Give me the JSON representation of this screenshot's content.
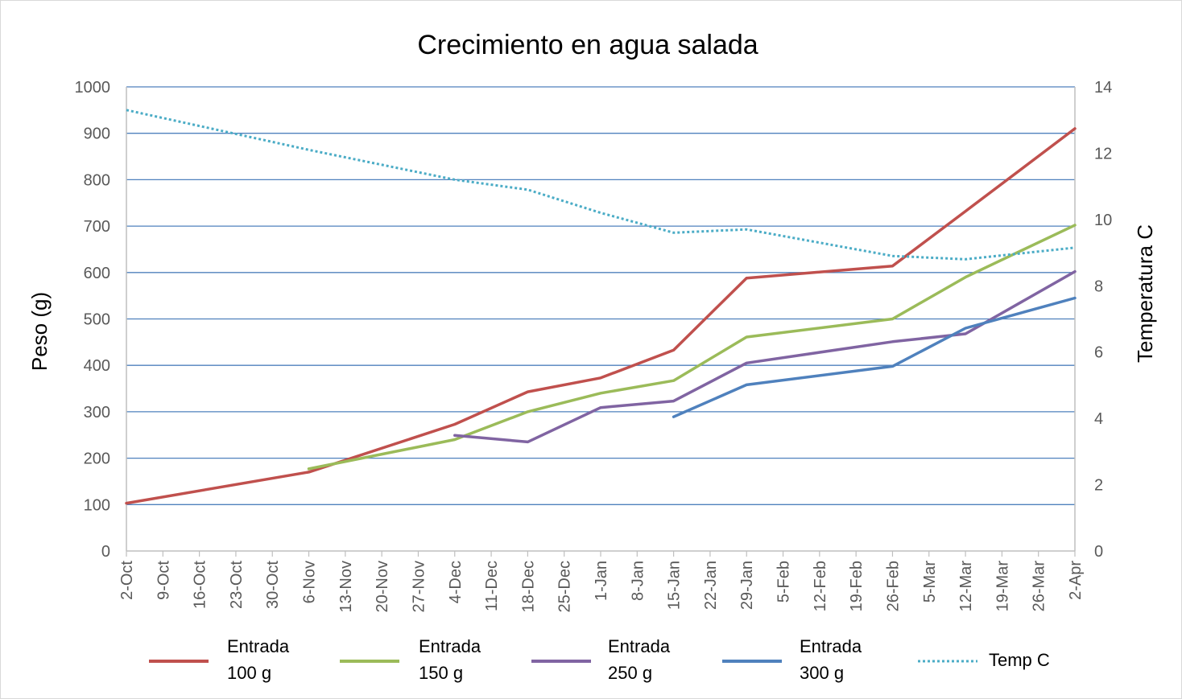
{
  "chart_data": {
    "type": "line",
    "title": "Crecimiento en agua salada",
    "ylabel": "Peso (g)",
    "y2label": "Temperatura C",
    "ylim": [
      0,
      1000
    ],
    "y2lim": [
      0,
      14
    ],
    "yticks": [
      "0",
      "100",
      "200",
      "300",
      "400",
      "500",
      "600",
      "700",
      "800",
      "900",
      "1000"
    ],
    "y2ticks": [
      "0",
      "2",
      "4",
      "6",
      "8",
      "10",
      "12",
      "14"
    ],
    "categories": [
      "2-Oct",
      "9-Oct",
      "16-Oct",
      "23-Oct",
      "30-Oct",
      "6-Nov",
      "13-Nov",
      "20-Nov",
      "27-Nov",
      "4-Dec",
      "11-Dec",
      "18-Dec",
      "25-Dec",
      "1-Jan",
      "8-Jan",
      "15-Jan",
      "22-Jan",
      "29-Jan",
      "5-Feb",
      "12-Feb",
      "19-Feb",
      "26-Feb",
      "5-Mar",
      "12-Mar",
      "19-Mar",
      "26-Mar",
      "2-Apr"
    ],
    "grid": true,
    "legend_position": "bottom",
    "series": [
      {
        "name": "Entrada 100 g",
        "legend_lines": [
          "Entrada",
          "100 g"
        ],
        "color": "#c0504d",
        "axis": "left",
        "style": "solid",
        "points": [
          {
            "x": "2-Oct",
            "y": 103
          },
          {
            "x": "6-Nov",
            "y": 170
          },
          {
            "x": "4-Dec",
            "y": 273
          },
          {
            "x": "18-Dec",
            "y": 343
          },
          {
            "x": "1-Jan",
            "y": 373
          },
          {
            "x": "15-Jan",
            "y": 433
          },
          {
            "x": "29-Jan",
            "y": 588
          },
          {
            "x": "26-Feb",
            "y": 614
          },
          {
            "x": "12-Mar",
            "y": 732
          },
          {
            "x": "2-Apr",
            "y": 910
          }
        ]
      },
      {
        "name": "Entrada 150 g",
        "legend_lines": [
          "Entrada",
          "150 g"
        ],
        "color": "#9bbb59",
        "axis": "left",
        "style": "solid",
        "points": [
          {
            "x": "6-Nov",
            "y": 177
          },
          {
            "x": "4-Dec",
            "y": 240
          },
          {
            "x": "18-Dec",
            "y": 300
          },
          {
            "x": "1-Jan",
            "y": 340
          },
          {
            "x": "15-Jan",
            "y": 367
          },
          {
            "x": "29-Jan",
            "y": 461
          },
          {
            "x": "26-Feb",
            "y": 500
          },
          {
            "x": "12-Mar",
            "y": 590
          },
          {
            "x": "2-Apr",
            "y": 702
          }
        ]
      },
      {
        "name": "Entrada 250 g",
        "legend_lines": [
          "Entrada",
          "250 g"
        ],
        "color": "#8064a2",
        "axis": "left",
        "style": "solid",
        "points": [
          {
            "x": "4-Dec",
            "y": 249
          },
          {
            "x": "18-Dec",
            "y": 235
          },
          {
            "x": "1-Jan",
            "y": 309
          },
          {
            "x": "15-Jan",
            "y": 323
          },
          {
            "x": "29-Jan",
            "y": 405
          },
          {
            "x": "26-Feb",
            "y": 451
          },
          {
            "x": "12-Mar",
            "y": 468
          },
          {
            "x": "2-Apr",
            "y": 602
          }
        ]
      },
      {
        "name": "Entrada 300 g",
        "legend_lines": [
          "Entrada",
          "300 g"
        ],
        "color": "#4f81bd",
        "axis": "left",
        "style": "solid",
        "points": [
          {
            "x": "15-Jan",
            "y": 289
          },
          {
            "x": "29-Jan",
            "y": 358
          },
          {
            "x": "26-Feb",
            "y": 398
          },
          {
            "x": "12-Mar",
            "y": 480
          },
          {
            "x": "2-Apr",
            "y": 545
          }
        ]
      },
      {
        "name": "Temp C",
        "legend_lines": [
          "Temp C"
        ],
        "color": "#4bacc6",
        "axis": "right",
        "style": "dotted",
        "points": [
          {
            "x": "2-Oct",
            "y": 13.3
          },
          {
            "x": "6-Nov",
            "y": 12.1
          },
          {
            "x": "4-Dec",
            "y": 11.2
          },
          {
            "x": "18-Dec",
            "y": 10.9
          },
          {
            "x": "1-Jan",
            "y": 10.2
          },
          {
            "x": "15-Jan",
            "y": 9.6
          },
          {
            "x": "29-Jan",
            "y": 9.7
          },
          {
            "x": "26-Feb",
            "y": 8.9
          },
          {
            "x": "12-Mar",
            "y": 8.8
          },
          {
            "x": "2-Apr",
            "y": 9.15
          }
        ]
      }
    ]
  }
}
